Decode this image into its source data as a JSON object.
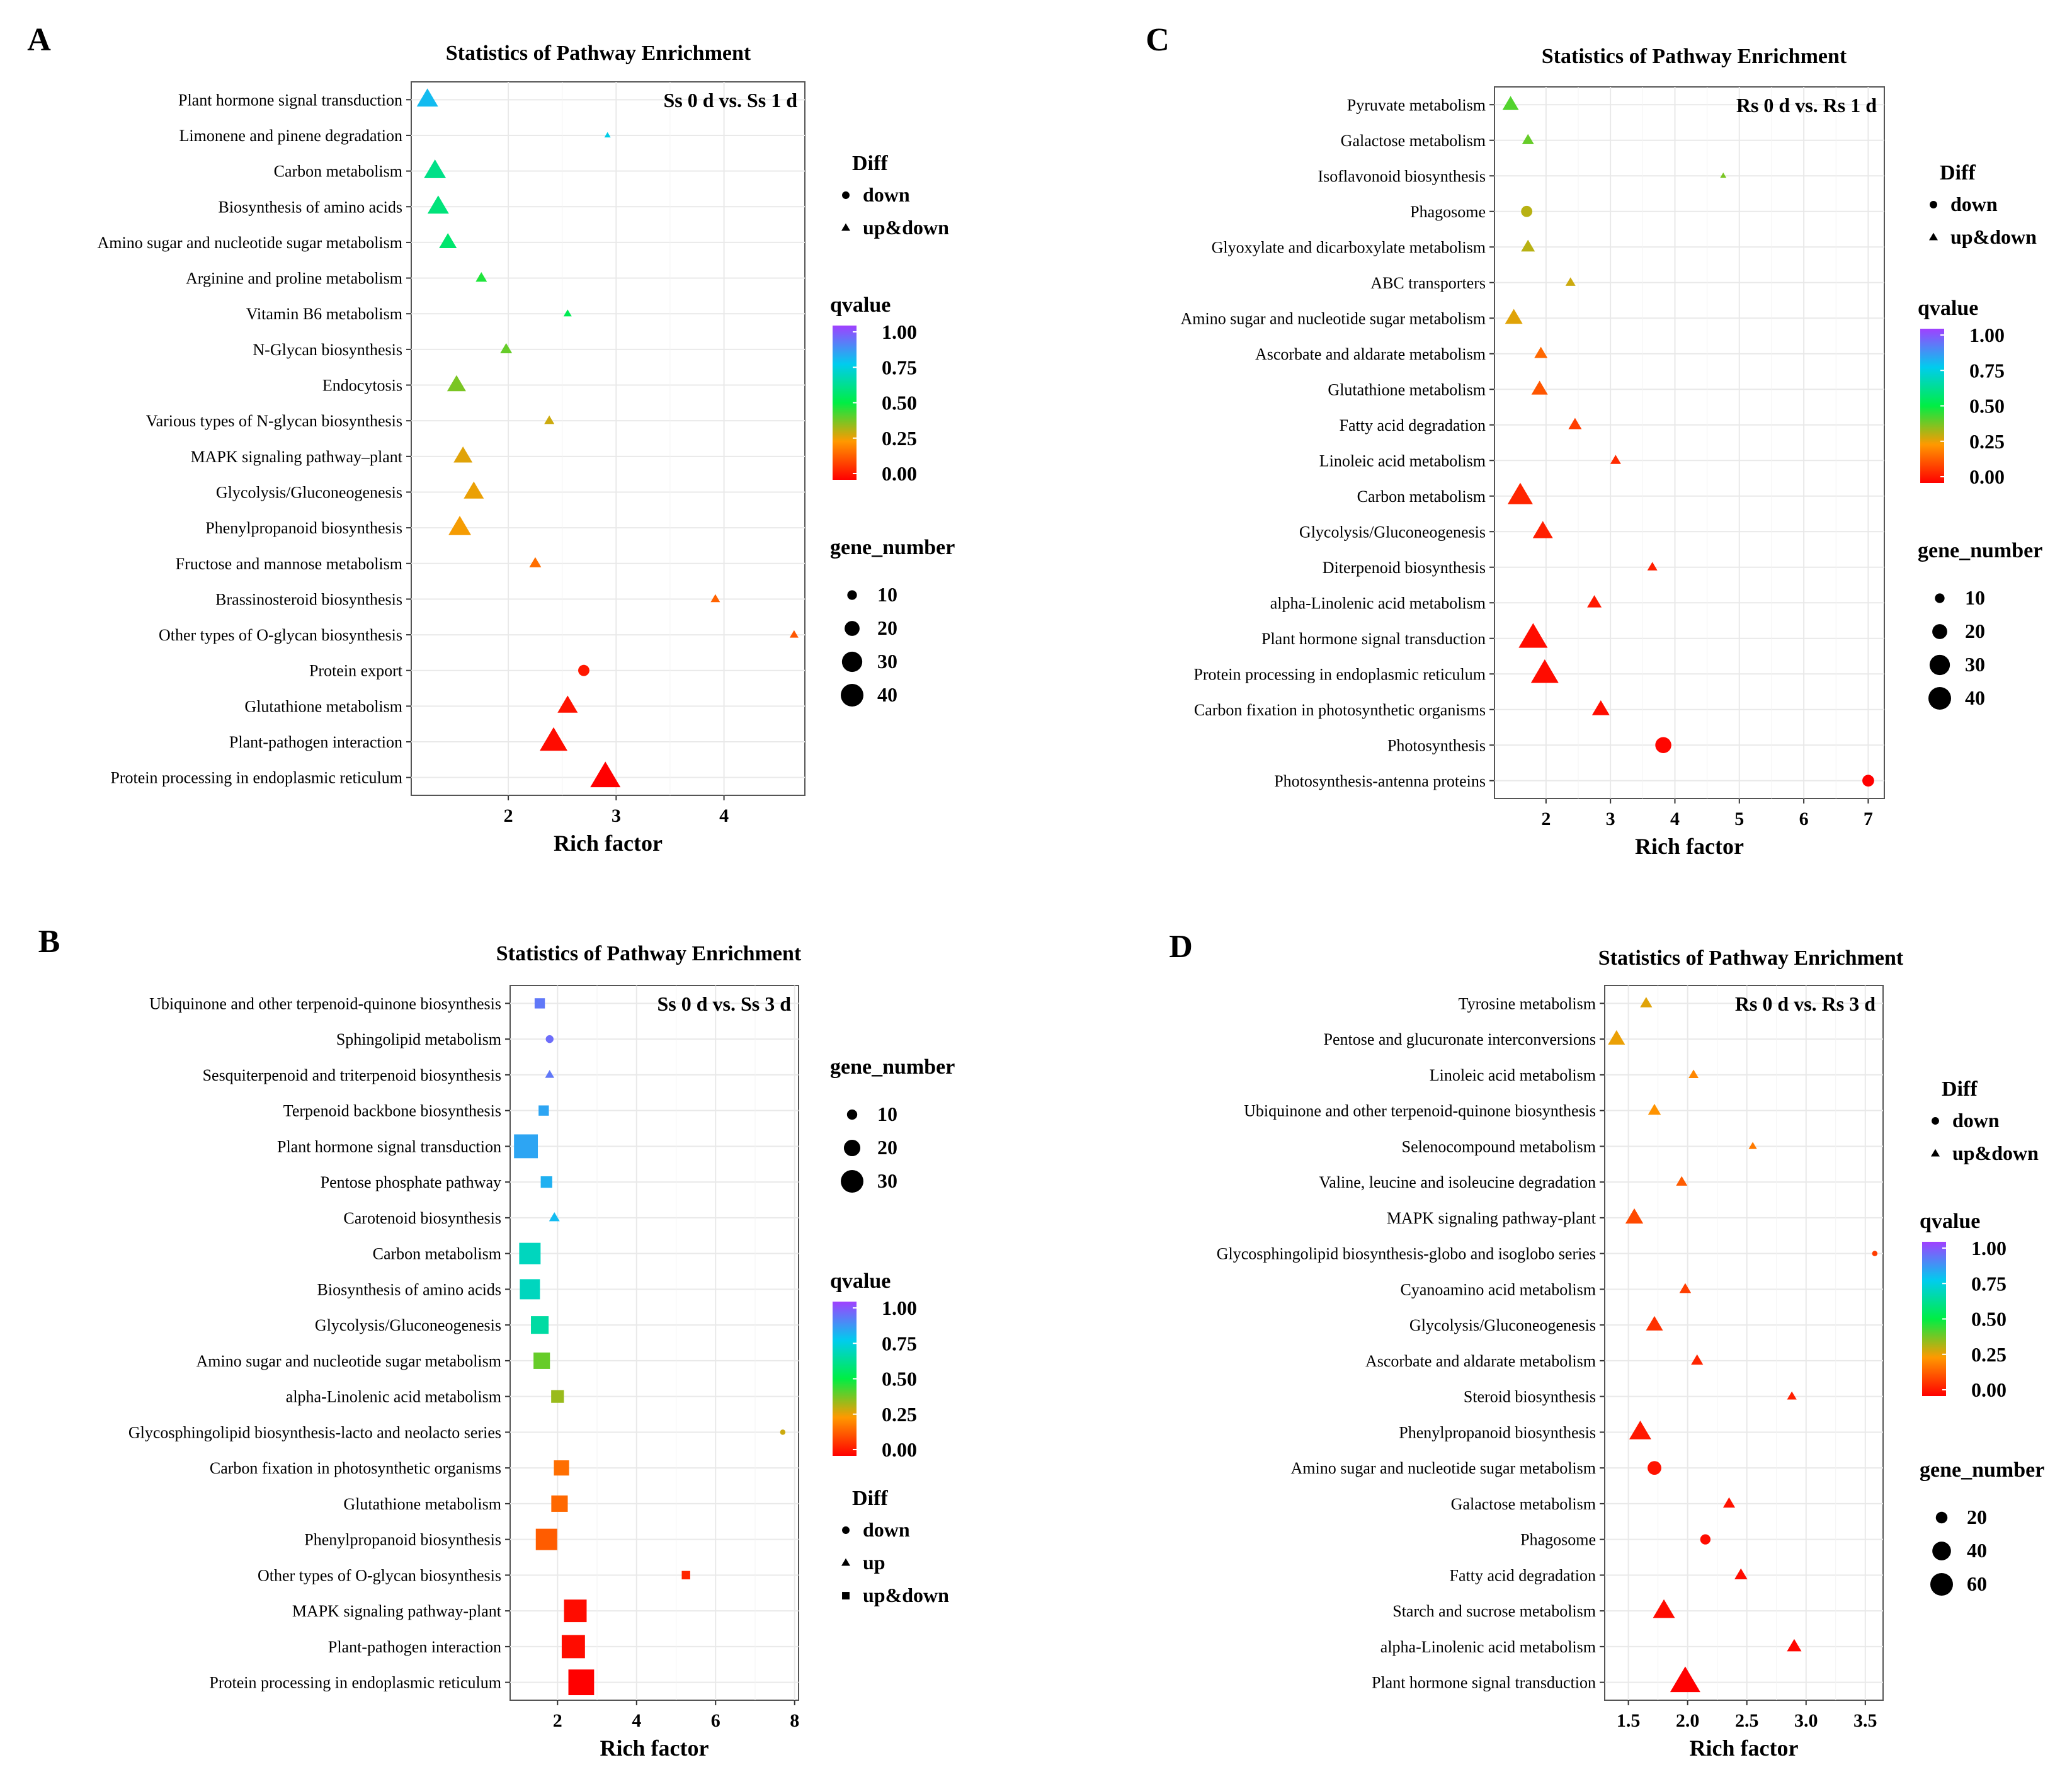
{
  "figure": {
    "palette": {
      "q0": "#ff0000",
      "q025": "#ff9900",
      "q050": "#00ee44",
      "q075": "#00ccee",
      "q100": "#a040ff",
      "plot_bg": "#ffffff",
      "grid": "#e9e9e9",
      "frame": "#555555"
    },
    "labels": {
      "diff_title": "Diff",
      "qvalue_title": "qvalue",
      "gene_number_title": "gene_number",
      "rich_factor": "Rich factor",
      "down": "down",
      "up": "up",
      "up_and_down": "up&down"
    }
  },
  "chart_data": [
    {
      "panel": "A",
      "type": "scatter",
      "title": "Statistics of Pathway Enrichment",
      "comparison": "Ss 0 d vs. Ss 1 d",
      "xlabel": "Rich factor",
      "ylabel": "",
      "xlim": [
        1.1,
        4.75
      ],
      "xticks": [
        2,
        3,
        4
      ],
      "grid": true,
      "legend_order": [
        "diff",
        "qvalue",
        "gene_number"
      ],
      "diff_legend": [
        "down",
        "up&down"
      ],
      "qvalue_ticks": [
        "1.00",
        "0.75",
        "0.50",
        "0.25",
        "0.00"
      ],
      "gene_number_legend": [
        10,
        20,
        30,
        40
      ],
      "gene_number_range": [
        2,
        40
      ],
      "points": [
        {
          "pathway": "Plant hormone signal transduction",
          "rich_factor": 1.25,
          "qvalue": 0.78,
          "gene_number": 26,
          "diff": "up&down"
        },
        {
          "pathway": "Limonene and pinene degradation",
          "rich_factor": 2.92,
          "qvalue": 0.74,
          "gene_number": 2,
          "diff": "up&down"
        },
        {
          "pathway": "Carbon metabolism",
          "rich_factor": 1.32,
          "qvalue": 0.6,
          "gene_number": 27,
          "diff": "up&down"
        },
        {
          "pathway": "Biosynthesis of amino acids",
          "rich_factor": 1.35,
          "qvalue": 0.58,
          "gene_number": 26,
          "diff": "up&down"
        },
        {
          "pathway": "Amino sugar and nucleotide sugar metabolism",
          "rich_factor": 1.44,
          "qvalue": 0.56,
          "gene_number": 20,
          "diff": "up&down"
        },
        {
          "pathway": "Arginine and proline metabolism",
          "rich_factor": 1.75,
          "qvalue": 0.47,
          "gene_number": 10,
          "diff": "up&down"
        },
        {
          "pathway": "Vitamin B6 metabolism",
          "rich_factor": 2.55,
          "qvalue": 0.52,
          "gene_number": 5,
          "diff": "up&down"
        },
        {
          "pathway": "N-Glycan biosynthesis",
          "rich_factor": 1.98,
          "qvalue": 0.4,
          "gene_number": 11,
          "diff": "up&down"
        },
        {
          "pathway": "Endocytosis",
          "rich_factor": 1.52,
          "qvalue": 0.38,
          "gene_number": 22,
          "diff": "up&down"
        },
        {
          "pathway": "Various types of N-glycan biosynthesis",
          "rich_factor": 2.38,
          "qvalue": 0.3,
          "gene_number": 8,
          "diff": "up&down"
        },
        {
          "pathway": "MAPK signaling pathway–plant",
          "rich_factor": 1.58,
          "qvalue": 0.28,
          "gene_number": 22,
          "diff": "up&down"
        },
        {
          "pathway": "Glycolysis/Gluconeogenesis",
          "rich_factor": 1.68,
          "qvalue": 0.27,
          "gene_number": 24,
          "diff": "up&down"
        },
        {
          "pathway": "Phenylpropanoid biosynthesis",
          "rich_factor": 1.55,
          "qvalue": 0.26,
          "gene_number": 28,
          "diff": "up&down"
        },
        {
          "pathway": "Fructose and mannose metabolism",
          "rich_factor": 2.25,
          "qvalue": 0.18,
          "gene_number": 11,
          "diff": "up&down"
        },
        {
          "pathway": "Brassinosteroid biosynthesis",
          "rich_factor": 3.92,
          "qvalue": 0.16,
          "gene_number": 7,
          "diff": "up&down"
        },
        {
          "pathway": "Other types of O-glycan biosynthesis",
          "rich_factor": 4.65,
          "qvalue": 0.14,
          "gene_number": 6,
          "diff": "up&down"
        },
        {
          "pathway": "Protein export",
          "rich_factor": 2.7,
          "qvalue": 0.04,
          "gene_number": 13,
          "diff": "down"
        },
        {
          "pathway": "Glutathione metabolism",
          "rich_factor": 2.55,
          "qvalue": 0.03,
          "gene_number": 24,
          "diff": "up&down"
        },
        {
          "pathway": "Plant-pathogen interaction",
          "rich_factor": 2.42,
          "qvalue": 0.02,
          "gene_number": 36,
          "diff": "up&down"
        },
        {
          "pathway": "Protein processing in endoplasmic reticulum",
          "rich_factor": 2.9,
          "qvalue": 0.0,
          "gene_number": 40,
          "diff": "up&down"
        }
      ]
    },
    {
      "panel": "B",
      "type": "scatter",
      "title": "Statistics of Pathway Enrichment",
      "comparison": "Ss 0 d vs. Ss 3 d",
      "xlabel": "Rich factor",
      "ylabel": "",
      "xlim": [
        0.8,
        8.1
      ],
      "xticks": [
        2,
        4,
        6,
        8
      ],
      "grid": true,
      "legend_order": [
        "gene_number",
        "qvalue",
        "diff"
      ],
      "diff_legend": [
        "down",
        "up",
        "up&down"
      ],
      "qvalue_ticks": [
        "1.00",
        "0.75",
        "0.50",
        "0.25",
        "0.00"
      ],
      "gene_number_legend": [
        10,
        20,
        30
      ],
      "gene_number_range": [
        2,
        35
      ],
      "points": [
        {
          "pathway": "Ubiquinone and other terpenoid-quinone biosynthesis",
          "rich_factor": 1.55,
          "qvalue": 0.9,
          "gene_number": 10,
          "diff": "up&down"
        },
        {
          "pathway": "Sphingolipid metabolism",
          "rich_factor": 1.8,
          "qvalue": 0.92,
          "gene_number": 6,
          "diff": "down"
        },
        {
          "pathway": "Sesquiterpenoid and triterpenoid biosynthesis",
          "rich_factor": 1.8,
          "qvalue": 0.9,
          "gene_number": 6,
          "diff": "up"
        },
        {
          "pathway": "Terpenoid backbone biosynthesis",
          "rich_factor": 1.65,
          "qvalue": 0.82,
          "gene_number": 10,
          "diff": "up&down"
        },
        {
          "pathway": "Plant hormone signal transduction",
          "rich_factor": 1.2,
          "qvalue": 0.82,
          "gene_number": 32,
          "diff": "up&down"
        },
        {
          "pathway": "Pentose phosphate pathway",
          "rich_factor": 1.72,
          "qvalue": 0.8,
          "gene_number": 12,
          "diff": "up&down"
        },
        {
          "pathway": "Carotenoid biosynthesis",
          "rich_factor": 1.92,
          "qvalue": 0.78,
          "gene_number": 8,
          "diff": "up"
        },
        {
          "pathway": "Carbon metabolism",
          "rich_factor": 1.3,
          "qvalue": 0.68,
          "gene_number": 28,
          "diff": "up&down"
        },
        {
          "pathway": "Biosynthesis of amino acids",
          "rich_factor": 1.3,
          "qvalue": 0.68,
          "gene_number": 26,
          "diff": "up&down"
        },
        {
          "pathway": "Glycolysis/Gluconeogenesis",
          "rich_factor": 1.55,
          "qvalue": 0.64,
          "gene_number": 22,
          "diff": "up&down"
        },
        {
          "pathway": "Amino sugar and nucleotide sugar metabolism",
          "rich_factor": 1.6,
          "qvalue": 0.4,
          "gene_number": 20,
          "diff": "up&down"
        },
        {
          "pathway": "alpha-Linolenic acid metabolism",
          "rich_factor": 2.0,
          "qvalue": 0.35,
          "gene_number": 14,
          "diff": "up&down"
        },
        {
          "pathway": "Glycosphingolipid biosynthesis-lacto and neolacto series",
          "rich_factor": 7.7,
          "qvalue": 0.3,
          "gene_number": 2,
          "diff": "down"
        },
        {
          "pathway": "Carbon fixation in photosynthetic organisms",
          "rich_factor": 2.1,
          "qvalue": 0.18,
          "gene_number": 18,
          "diff": "up&down"
        },
        {
          "pathway": "Glutathione metabolism",
          "rich_factor": 2.05,
          "qvalue": 0.17,
          "gene_number": 20,
          "diff": "up&down"
        },
        {
          "pathway": "Phenylpropanoid biosynthesis",
          "rich_factor": 1.72,
          "qvalue": 0.15,
          "gene_number": 28,
          "diff": "up&down"
        },
        {
          "pathway": "Other types of O-glycan biosynthesis",
          "rich_factor": 5.25,
          "qvalue": 0.06,
          "gene_number": 7,
          "diff": "up&down"
        },
        {
          "pathway": "MAPK signaling pathway-plant",
          "rich_factor": 2.45,
          "qvalue": 0.02,
          "gene_number": 30,
          "diff": "up&down"
        },
        {
          "pathway": "Plant-pathogen interaction",
          "rich_factor": 2.4,
          "qvalue": 0.02,
          "gene_number": 31,
          "diff": "up&down"
        },
        {
          "pathway": "Protein processing in endoplasmic reticulum",
          "rich_factor": 2.6,
          "qvalue": 0.0,
          "gene_number": 35,
          "diff": "up&down"
        }
      ]
    },
    {
      "panel": "C",
      "type": "scatter",
      "title": "Statistics of Pathway Enrichment",
      "comparison": "Rs 0 d vs. Rs 1 d",
      "xlabel": "Rich factor",
      "ylabel": "",
      "xlim": [
        1.2,
        7.25
      ],
      "xticks": [
        2,
        3,
        4,
        5,
        6,
        7
      ],
      "grid": true,
      "legend_order": [
        "diff",
        "qvalue",
        "gene_number"
      ],
      "diff_legend": [
        "down",
        "up&down"
      ],
      "qvalue_ticks": [
        "1.00",
        "0.75",
        "0.50",
        "0.25",
        "0.00"
      ],
      "gene_number_legend": [
        10,
        20,
        30,
        40
      ],
      "gene_number_range": [
        2,
        40
      ],
      "points": [
        {
          "pathway": "Pyruvate metabolism",
          "rich_factor": 1.45,
          "qvalue": 0.42,
          "gene_number": 18,
          "diff": "up&down"
        },
        {
          "pathway": "Galactose metabolism",
          "rich_factor": 1.72,
          "qvalue": 0.4,
          "gene_number": 11,
          "diff": "up&down"
        },
        {
          "pathway": "Isoflavonoid biosynthesis",
          "rich_factor": 4.75,
          "qvalue": 0.38,
          "gene_number": 2,
          "diff": "up&down"
        },
        {
          "pathway": "Phagosome",
          "rich_factor": 1.7,
          "qvalue": 0.32,
          "gene_number": 13,
          "diff": "down"
        },
        {
          "pathway": "Glyoxylate and dicarboxylate metabolism",
          "rich_factor": 1.72,
          "qvalue": 0.32,
          "gene_number": 14,
          "diff": "up&down"
        },
        {
          "pathway": "ABC transporters",
          "rich_factor": 2.38,
          "qvalue": 0.3,
          "gene_number": 8,
          "diff": "up&down"
        },
        {
          "pathway": "Amino sugar and nucleotide sugar metabolism",
          "rich_factor": 1.5,
          "qvalue": 0.28,
          "gene_number": 20,
          "diff": "up&down"
        },
        {
          "pathway": "Ascorbate and aldarate metabolism",
          "rich_factor": 1.92,
          "qvalue": 0.17,
          "gene_number": 13,
          "diff": "up&down"
        },
        {
          "pathway": "Glutathione metabolism",
          "rich_factor": 1.9,
          "qvalue": 0.14,
          "gene_number": 18,
          "diff": "up&down"
        },
        {
          "pathway": "Fatty acid degradation",
          "rich_factor": 2.45,
          "qvalue": 0.1,
          "gene_number": 13,
          "diff": "up&down"
        },
        {
          "pathway": "Linoleic acid metabolism",
          "rich_factor": 3.08,
          "qvalue": 0.07,
          "gene_number": 9,
          "diff": "up&down"
        },
        {
          "pathway": "Carbon metabolism",
          "rich_factor": 1.6,
          "qvalue": 0.06,
          "gene_number": 32,
          "diff": "up&down"
        },
        {
          "pathway": "Glycolysis/Gluconeogenesis",
          "rich_factor": 1.95,
          "qvalue": 0.05,
          "gene_number": 24,
          "diff": "up&down"
        },
        {
          "pathway": "Diterpenoid biosynthesis",
          "rich_factor": 3.65,
          "qvalue": 0.05,
          "gene_number": 8,
          "diff": "up&down"
        },
        {
          "pathway": "alpha-Linolenic acid metabolism",
          "rich_factor": 2.75,
          "qvalue": 0.04,
          "gene_number": 15,
          "diff": "up&down"
        },
        {
          "pathway": "Plant hormone signal transduction",
          "rich_factor": 1.8,
          "qvalue": 0.02,
          "gene_number": 38,
          "diff": "up&down"
        },
        {
          "pathway": "Protein processing in endoplasmic reticulum",
          "rich_factor": 1.98,
          "qvalue": 0.02,
          "gene_number": 36,
          "diff": "up&down"
        },
        {
          "pathway": "Carbon fixation in photosynthetic organisms",
          "rich_factor": 2.85,
          "qvalue": 0.02,
          "gene_number": 20,
          "diff": "up&down"
        },
        {
          "pathway": "Photosynthesis",
          "rich_factor": 3.82,
          "qvalue": 0.01,
          "gene_number": 22,
          "diff": "down"
        },
        {
          "pathway": "Photosynthesis-antenna proteins",
          "rich_factor": 7.0,
          "qvalue": 0.0,
          "gene_number": 14,
          "diff": "down"
        }
      ]
    },
    {
      "panel": "D",
      "type": "scatter",
      "title": "Statistics of Pathway Enrichment",
      "comparison": "Rs 0 d vs. Rs 3 d",
      "xlabel": "Rich factor",
      "ylabel": "",
      "xlim": [
        1.3,
        3.65
      ],
      "xticks": [
        1.5,
        2.0,
        2.5,
        3.0,
        3.5
      ],
      "xtick_labels": [
        "1.5",
        "2.0",
        "2.5",
        "3.0",
        "3.5"
      ],
      "grid": true,
      "legend_order": [
        "diff",
        "qvalue",
        "gene_number"
      ],
      "diff_legend": [
        "down",
        "up&down"
      ],
      "qvalue_ticks": [
        "1.00",
        "0.75",
        "0.50",
        "0.25",
        "0.00"
      ],
      "gene_number_legend": [
        20,
        40,
        60
      ],
      "gene_number_range": [
        2,
        60
      ],
      "points": [
        {
          "pathway": "Tyrosine metabolism",
          "rich_factor": 1.65,
          "qvalue": 0.28,
          "gene_number": 16,
          "diff": "up&down"
        },
        {
          "pathway": "Pentose and glucuronate interconversions",
          "rich_factor": 1.4,
          "qvalue": 0.27,
          "gene_number": 28,
          "diff": "up&down"
        },
        {
          "pathway": "Linoleic acid metabolism",
          "rich_factor": 2.05,
          "qvalue": 0.22,
          "gene_number": 11,
          "diff": "up&down"
        },
        {
          "pathway": "Ubiquinone and other terpenoid-quinone biosynthesis",
          "rich_factor": 1.72,
          "qvalue": 0.24,
          "gene_number": 18,
          "diff": "up&down"
        },
        {
          "pathway": "Selenocompound metabolism",
          "rich_factor": 2.55,
          "qvalue": 0.2,
          "gene_number": 7,
          "diff": "up&down"
        },
        {
          "pathway": "Valine, leucine and isoleucine degradation",
          "rich_factor": 1.95,
          "qvalue": 0.15,
          "gene_number": 14,
          "diff": "up&down"
        },
        {
          "pathway": "MAPK signaling pathway-plant",
          "rich_factor": 1.55,
          "qvalue": 0.12,
          "gene_number": 30,
          "diff": "up&down"
        },
        {
          "pathway": "Glycosphingolipid biosynthesis-globo and isoglobo series",
          "rich_factor": 3.58,
          "qvalue": 0.1,
          "gene_number": 2,
          "diff": "down"
        },
        {
          "pathway": "Cyanoamino acid metabolism",
          "rich_factor": 1.98,
          "qvalue": 0.1,
          "gene_number": 15,
          "diff": "up&down"
        },
        {
          "pathway": "Glycolysis/Gluconeogenesis",
          "rich_factor": 1.72,
          "qvalue": 0.08,
          "gene_number": 28,
          "diff": "up&down"
        },
        {
          "pathway": "Ascorbate and aldarate metabolism",
          "rich_factor": 2.08,
          "qvalue": 0.06,
          "gene_number": 16,
          "diff": "up&down"
        },
        {
          "pathway": "Steroid biosynthesis",
          "rich_factor": 2.88,
          "qvalue": 0.05,
          "gene_number": 10,
          "diff": "up&down"
        },
        {
          "pathway": "Phenylpropanoid biosynthesis",
          "rich_factor": 1.6,
          "qvalue": 0.04,
          "gene_number": 40,
          "diff": "up&down"
        },
        {
          "pathway": "Amino sugar and nucleotide sugar metabolism",
          "rich_factor": 1.72,
          "qvalue": 0.03,
          "gene_number": 26,
          "diff": "down"
        },
        {
          "pathway": "Galactose metabolism",
          "rich_factor": 2.35,
          "qvalue": 0.03,
          "gene_number": 16,
          "diff": "up&down"
        },
        {
          "pathway": "Phagosome",
          "rich_factor": 2.15,
          "qvalue": 0.02,
          "gene_number": 16,
          "diff": "down"
        },
        {
          "pathway": "Fatty acid degradation",
          "rich_factor": 2.45,
          "qvalue": 0.02,
          "gene_number": 18,
          "diff": "up&down"
        },
        {
          "pathway": "Starch and sucrose metabolism",
          "rich_factor": 1.8,
          "qvalue": 0.02,
          "gene_number": 40,
          "diff": "up&down"
        },
        {
          "pathway": "alpha-Linolenic acid metabolism",
          "rich_factor": 2.9,
          "qvalue": 0.01,
          "gene_number": 22,
          "diff": "up&down"
        },
        {
          "pathway": "Plant hormone signal transduction",
          "rich_factor": 1.98,
          "qvalue": 0.0,
          "gene_number": 60,
          "diff": "up&down"
        }
      ]
    }
  ]
}
